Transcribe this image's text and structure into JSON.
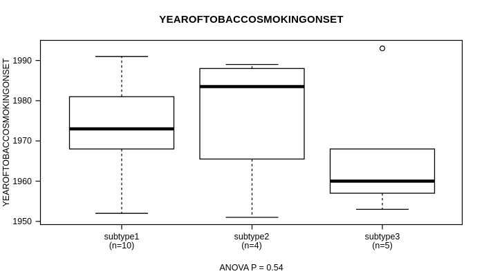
{
  "colors": {
    "line": "#000000",
    "background": "#ffffff"
  },
  "chart_data": {
    "type": "boxplot",
    "title": "YEAROFTOBACCOSMOKINGONSET",
    "ylabel": "YEAROFTOBACCOSMOKINGONSET",
    "footer": "ANOVA P = 0.54",
    "grid": false,
    "legend": "none",
    "ylim": [
      1949.2,
      1995.0
    ],
    "yticks": [
      1950,
      1960,
      1970,
      1980,
      1990
    ],
    "x_positions": [
      1,
      2,
      3
    ],
    "groups": [
      {
        "label": "subtype1",
        "sublabel": "(n=10)",
        "n": 10,
        "whisker_low": 1952,
        "q1": 1968,
        "median": 1973,
        "q3": 1981,
        "whisker_high": 1991,
        "outliers": []
      },
      {
        "label": "subtype2",
        "sublabel": "(n=4)",
        "n": 4,
        "whisker_low": 1951,
        "q1": 1965.5,
        "median": 1983.5,
        "q3": 1988,
        "whisker_high": 1989,
        "outliers": []
      },
      {
        "label": "subtype3",
        "sublabel": "(n=5)",
        "n": 5,
        "whisker_low": 1953,
        "q1": 1957,
        "median": 1960,
        "q3": 1968,
        "whisker_high": 1968,
        "outliers": [
          1993
        ]
      }
    ]
  }
}
